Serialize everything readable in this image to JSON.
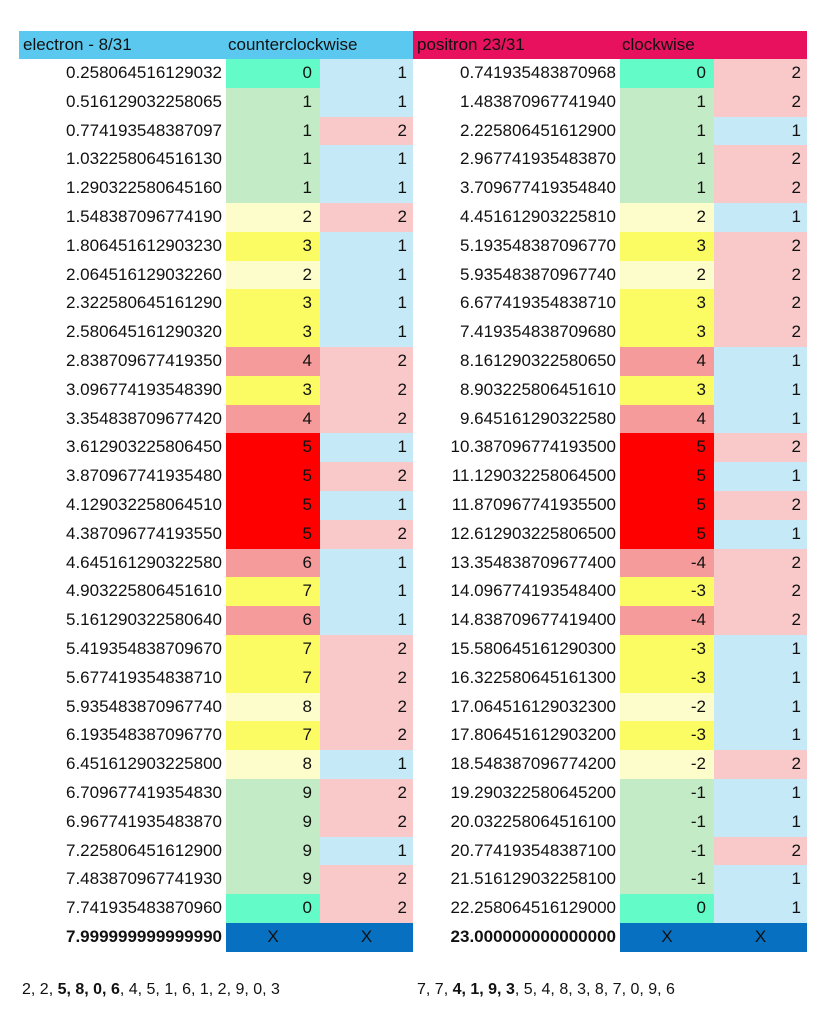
{
  "colors": {
    "left_header": "#5bc9ef",
    "right_header": "#e8115d",
    "col3_blue": "#c5e9f7",
    "col3_pink": "#f9c8c8",
    "last_row_blue": "#0870c0",
    "levels": {
      "0": "#63fcc9",
      "1": "#c3ebc5",
      "2": "#fdfdcb",
      "3": "#fbfb64",
      "4": "#f59b9b",
      "5": "#fe0000",
      "6": "#f59b9b",
      "7": "#fbfb64",
      "8": "#fdfdcb",
      "9": "#c3ebc5"
    }
  },
  "left": {
    "title": "electron - 8/31",
    "direction": "counterclockwise",
    "rows": [
      [
        "0.258064516129032",
        "0",
        "1"
      ],
      [
        "0.516129032258065",
        "1",
        "1"
      ],
      [
        "0.774193548387097",
        "1",
        "2"
      ],
      [
        "1.032258064516130",
        "1",
        "1"
      ],
      [
        "1.290322580645160",
        "1",
        "1"
      ],
      [
        "1.548387096774190",
        "2",
        "2"
      ],
      [
        "1.806451612903230",
        "3",
        "1"
      ],
      [
        "2.064516129032260",
        "2",
        "1"
      ],
      [
        "2.322580645161290",
        "3",
        "1"
      ],
      [
        "2.580645161290320",
        "3",
        "1"
      ],
      [
        "2.838709677419350",
        "4",
        "2"
      ],
      [
        "3.096774193548390",
        "3",
        "2"
      ],
      [
        "3.354838709677420",
        "4",
        "2"
      ],
      [
        "3.612903225806450",
        "5",
        "1"
      ],
      [
        "3.870967741935480",
        "5",
        "2"
      ],
      [
        "4.129032258064510",
        "5",
        "1"
      ],
      [
        "4.387096774193550",
        "5",
        "2"
      ],
      [
        "4.645161290322580",
        "6",
        "1"
      ],
      [
        "4.903225806451610",
        "7",
        "1"
      ],
      [
        "5.161290322580640",
        "6",
        "1"
      ],
      [
        "5.419354838709670",
        "7",
        "2"
      ],
      [
        "5.677419354838710",
        "7",
        "2"
      ],
      [
        "5.935483870967740",
        "8",
        "2"
      ],
      [
        "6.193548387096770",
        "7",
        "2"
      ],
      [
        "6.451612903225800",
        "8",
        "1"
      ],
      [
        "6.709677419354830",
        "9",
        "2"
      ],
      [
        "6.967741935483870",
        "9",
        "2"
      ],
      [
        "7.225806451612900",
        "9",
        "1"
      ],
      [
        "7.483870967741930",
        "9",
        "2"
      ],
      [
        "7.741935483870960",
        "0",
        "2"
      ]
    ],
    "last": [
      "7.999999999999990",
      "X",
      "X"
    ],
    "footer_pre": "2, 2, ",
    "footer_bold": "5, 8, 0, 6",
    "footer_post": ", 4, 5, 1, 6, 1, 2, 9, 0, 3"
  },
  "right": {
    "title": "positron 23/31",
    "direction": "clockwise",
    "rows": [
      [
        "0.741935483870968",
        "0",
        "2"
      ],
      [
        "1.483870967741940",
        "1",
        "2"
      ],
      [
        "2.225806451612900",
        "1",
        "1"
      ],
      [
        "2.967741935483870",
        "1",
        "2"
      ],
      [
        "3.709677419354840",
        "1",
        "2"
      ],
      [
        "4.451612903225810",
        "2",
        "1"
      ],
      [
        "5.193548387096770",
        "3",
        "2"
      ],
      [
        "5.935483870967740",
        "2",
        "2"
      ],
      [
        "6.677419354838710",
        "3",
        "2"
      ],
      [
        "7.419354838709680",
        "3",
        "2"
      ],
      [
        "8.161290322580650",
        "4",
        "1"
      ],
      [
        "8.903225806451610",
        "3",
        "1"
      ],
      [
        "9.645161290322580",
        "4",
        "1"
      ],
      [
        "10.387096774193500",
        "5",
        "2"
      ],
      [
        "11.129032258064500",
        "5",
        "1"
      ],
      [
        "11.870967741935500",
        "5",
        "2"
      ],
      [
        "12.612903225806500",
        "5",
        "1"
      ],
      [
        "13.354838709677400",
        "-4",
        "2"
      ],
      [
        "14.096774193548400",
        "-3",
        "2"
      ],
      [
        "14.838709677419400",
        "-4",
        "2"
      ],
      [
        "15.580645161290300",
        "-3",
        "1"
      ],
      [
        "16.322580645161300",
        "-3",
        "1"
      ],
      [
        "17.064516129032300",
        "-2",
        "1"
      ],
      [
        "17.806451612903200",
        "-3",
        "1"
      ],
      [
        "18.548387096774200",
        "-2",
        "2"
      ],
      [
        "19.290322580645200",
        "-1",
        "1"
      ],
      [
        "20.032258064516100",
        "-1",
        "1"
      ],
      [
        "20.774193548387100",
        "-1",
        "2"
      ],
      [
        "21.516129032258100",
        "-1",
        "1"
      ],
      [
        "22.258064516129000",
        "0",
        "1"
      ]
    ],
    "last": [
      "23.000000000000000",
      "X",
      "X"
    ],
    "footer_pre": "7, 7, ",
    "footer_bold": "4, 1, 9, 3",
    "footer_post": ", 5, 4, 8, 3, 8, 7, 0, 9, 6"
  }
}
